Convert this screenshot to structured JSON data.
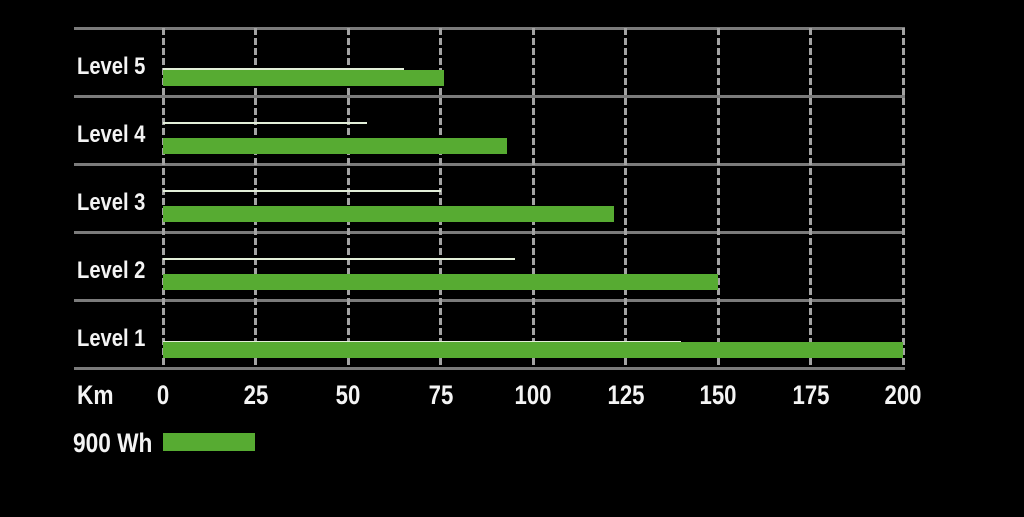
{
  "page": {
    "background_color": "#000000",
    "text_color": "#f4f4f4"
  },
  "colors": {
    "bar_green": "#57ab32",
    "thin_marker_line": "#e3efd9",
    "grid_solid_gray": "#7b7b7b",
    "grid_dashed_gray": "#a3a3a3"
  },
  "chart_data": {
    "type": "bar",
    "orientation": "horizontal",
    "title": "",
    "categories": [
      "Level 5",
      "Level 4",
      "Level 3",
      "Level 2",
      "Level 1"
    ],
    "series": [
      {
        "name": "900 Wh",
        "style": "bar",
        "color": "#57ab32",
        "values": [
          76,
          93,
          122,
          150,
          200
        ]
      },
      {
        "name": "thin marker line",
        "style": "thin-line",
        "color": "#e3efd9",
        "values": [
          65,
          55,
          75,
          95,
          140
        ]
      }
    ],
    "xlabel": "Km",
    "x_ticks": [
      "0",
      "25",
      "50",
      "75",
      "100",
      "125",
      "150",
      "175",
      "200"
    ],
    "x_tick_values": [
      0,
      25,
      50,
      75,
      100,
      125,
      150,
      175,
      200
    ],
    "xlim": [
      0,
      200
    ],
    "grid": {
      "vertical": "dashed line every 25 km",
      "horizontal": "solid divider line between each level row"
    },
    "legend_position": "bottom-left"
  },
  "axis": {
    "unit_label": "Km"
  },
  "legend": {
    "label": "900 Wh"
  }
}
